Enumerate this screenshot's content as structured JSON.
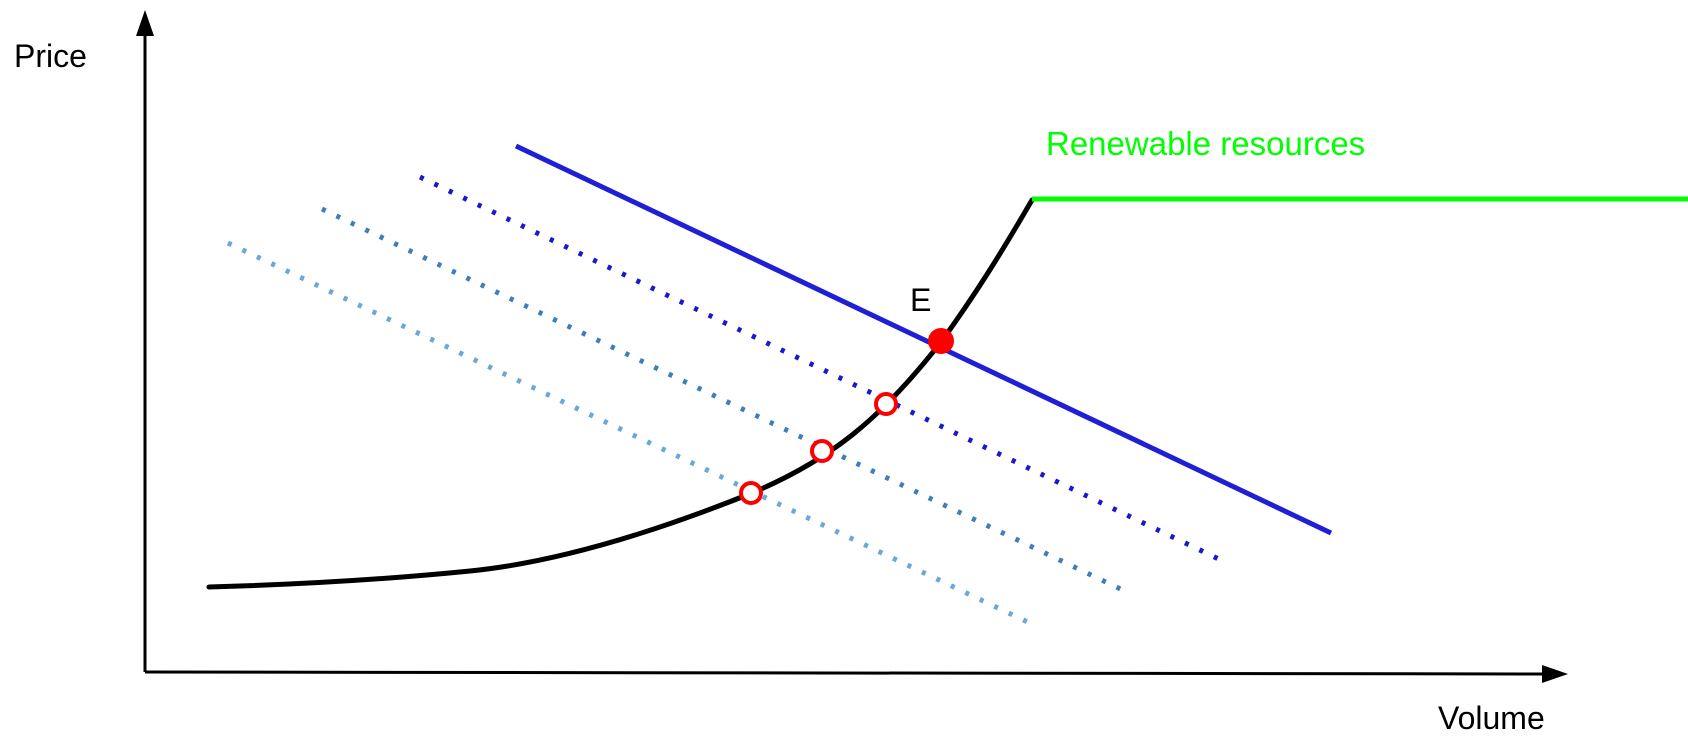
{
  "axes": {
    "y_label": "Price",
    "x_label": "Volume"
  },
  "labels": {
    "renewable": "Renewable resources",
    "equilibrium": "E"
  },
  "colors": {
    "axis": "#000000",
    "supply_curve": "#000000",
    "renewable": "#00ff00",
    "demand_solid": "#1f1fd6",
    "demand_dotted_1": "#1818d0",
    "demand_dotted_2": "#3d7fb8",
    "demand_dotted_3": "#6aa8d8",
    "equilibrium_point": "#ff0000"
  }
}
